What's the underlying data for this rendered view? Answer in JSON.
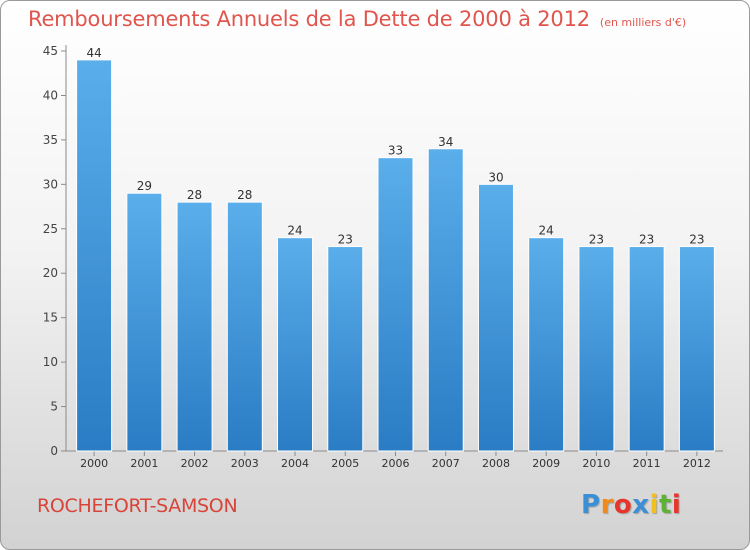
{
  "chart_data": {
    "type": "bar",
    "title": "Remboursements Annuels de la Dette de 2000 à 2012",
    "subtitle": "(en milliers d'€)",
    "categories": [
      "2000",
      "2001",
      "2002",
      "2003",
      "2004",
      "2005",
      "2006",
      "2007",
      "2008",
      "2009",
      "2010",
      "2011",
      "2012"
    ],
    "values": [
      44,
      29,
      28,
      28,
      24,
      23,
      33,
      34,
      30,
      24,
      23,
      23,
      23
    ],
    "ylim": [
      0,
      45
    ],
    "yticks": [
      0,
      5,
      10,
      15,
      20,
      25,
      30,
      35,
      40,
      45
    ],
    "grid": false,
    "bar_color_top": "#5aaeea",
    "bar_color_bottom": "#2a7cc4"
  },
  "footer": {
    "commune": "ROCHEFORT-SAMSON",
    "logo_letters": [
      "P",
      "r",
      "o",
      "x",
      "i",
      "t",
      "i"
    ],
    "logo_colors": [
      "#3a8fd6",
      "#f08a1c",
      "#e8352b",
      "#3a8fd6",
      "#f2c01e",
      "#5bb234",
      "#e8352b"
    ]
  }
}
